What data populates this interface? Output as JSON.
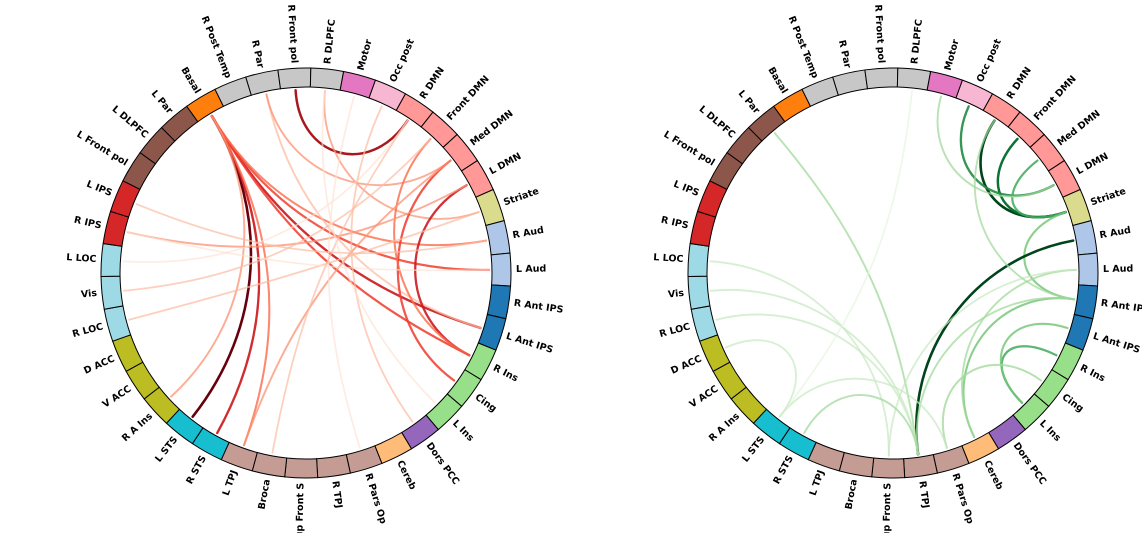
{
  "regions": [
    {
      "label": "R Par",
      "color": "#c7c7c7"
    },
    {
      "label": "R Front pol",
      "color": "#c7c7c7"
    },
    {
      "label": "R DLPFC",
      "color": "#c7c7c7"
    },
    {
      "label": "Motor",
      "color": "#e377c2"
    },
    {
      "label": "Occ post",
      "color": "#f7b6d2"
    },
    {
      "label": "R DMN",
      "color": "#ff9896"
    },
    {
      "label": "Front DMN",
      "color": "#ff9896"
    },
    {
      "label": "Med DMN",
      "color": "#ff9896"
    },
    {
      "label": "L DMN",
      "color": "#ff9896"
    },
    {
      "label": "Striate",
      "color": "#dbdb8d"
    },
    {
      "label": "R Aud",
      "color": "#aec7e8"
    },
    {
      "label": "L Aud",
      "color": "#aec7e8"
    },
    {
      "label": "R Ant IPS",
      "color": "#1f77b4"
    },
    {
      "label": "L Ant IPS",
      "color": "#1f77b4"
    },
    {
      "label": "R Ins",
      "color": "#98df8a"
    },
    {
      "label": "Cing",
      "color": "#98df8a"
    },
    {
      "label": "L Ins",
      "color": "#98df8a"
    },
    {
      "label": "Dors PCC",
      "color": "#9467bd"
    },
    {
      "label": "Cereb",
      "color": "#ffbb78"
    },
    {
      "label": "R Pars Op",
      "color": "#c49c94"
    },
    {
      "label": "R TPJ",
      "color": "#c49c94"
    },
    {
      "label": "Sup Front S",
      "color": "#c49c94"
    },
    {
      "label": "Broca",
      "color": "#c49c94"
    },
    {
      "label": "L TPJ",
      "color": "#c49c94"
    },
    {
      "label": "R STS",
      "color": "#17becf"
    },
    {
      "label": "L STS",
      "color": "#17becf"
    },
    {
      "label": "R A Ins",
      "color": "#bcbd22"
    },
    {
      "label": "V ACC",
      "color": "#bcbd22"
    },
    {
      "label": "D ACC",
      "color": "#bcbd22"
    },
    {
      "label": "R LOC",
      "color": "#9edae5"
    },
    {
      "label": "Vis",
      "color": "#9edae5"
    },
    {
      "label": "L LOC",
      "color": "#9edae5"
    },
    {
      "label": "R IPS",
      "color": "#d62728"
    },
    {
      "label": "L IPS",
      "color": "#d62728"
    },
    {
      "label": "L Front pol",
      "color": "#8c564b"
    },
    {
      "label": "L DLPFC",
      "color": "#8c564b"
    },
    {
      "label": "L Par",
      "color": "#8c564b"
    },
    {
      "label": "Basal",
      "color": "#ff7f0e"
    },
    {
      "label": "R Post Temp",
      "color": "#c7c7c7"
    }
  ],
  "diagrams": [
    {
      "name": "left",
      "edges": [
        {
          "from": 37,
          "to": 25,
          "color": "#67000d",
          "strength": 1.0
        },
        {
          "from": 37,
          "to": 24,
          "color": "#cb181d",
          "strength": 0.8
        },
        {
          "from": 37,
          "to": 13,
          "color": "#cb181d",
          "strength": 0.8
        },
        {
          "from": 37,
          "to": 14,
          "color": "#ef3b2c",
          "strength": 0.7
        },
        {
          "from": 37,
          "to": 11,
          "color": "#ef3b2c",
          "strength": 0.65
        },
        {
          "from": 37,
          "to": 10,
          "color": "#fb6a4a",
          "strength": 0.55
        },
        {
          "from": 37,
          "to": 23,
          "color": "#fb6a4a",
          "strength": 0.55
        },
        {
          "from": 37,
          "to": 26,
          "color": "#fc9272",
          "strength": 0.45
        },
        {
          "from": 1,
          "to": 5,
          "color": "#a50f15",
          "strength": 0.9
        },
        {
          "from": 0,
          "to": 13,
          "color": "#fcbba1",
          "strength": 0.4
        },
        {
          "from": 0,
          "to": 7,
          "color": "#fc9272",
          "strength": 0.45
        },
        {
          "from": 2,
          "to": 9,
          "color": "#fc9272",
          "strength": 0.4
        },
        {
          "from": 8,
          "to": 14,
          "color": "#cb181d",
          "strength": 0.75
        },
        {
          "from": 7,
          "to": 15,
          "color": "#ef3b2c",
          "strength": 0.7
        },
        {
          "from": 6,
          "to": 14,
          "color": "#fb6a4a",
          "strength": 0.55
        },
        {
          "from": 7,
          "to": 23,
          "color": "#fc9272",
          "strength": 0.45
        },
        {
          "from": 8,
          "to": 32,
          "color": "#fc9272",
          "strength": 0.45
        },
        {
          "from": 9,
          "to": 29,
          "color": "#fcbba1",
          "strength": 0.35
        },
        {
          "from": 6,
          "to": 30,
          "color": "#fcbba1",
          "strength": 0.3
        },
        {
          "from": 5,
          "to": 31,
          "color": "#fee0d2",
          "strength": 0.25
        },
        {
          "from": 33,
          "to": 10,
          "color": "#fcbba1",
          "strength": 0.3
        },
        {
          "from": 32,
          "to": 11,
          "color": "#fee0d2",
          "strength": 0.25
        },
        {
          "from": 4,
          "to": 17,
          "color": "#fcbba1",
          "strength": 0.35
        },
        {
          "from": 3,
          "to": 19,
          "color": "#fee0d2",
          "strength": 0.25
        },
        {
          "from": 5,
          "to": 22,
          "color": "#fcbba1",
          "strength": 0.3
        },
        {
          "from": 2,
          "to": 16,
          "color": "#fee0d2",
          "strength": 0.25
        }
      ]
    },
    {
      "name": "right",
      "edges": [
        {
          "from": 5,
          "to": 9,
          "color": "#00441b",
          "strength": 1.0
        },
        {
          "from": 6,
          "to": 9,
          "color": "#006d2c",
          "strength": 0.9
        },
        {
          "from": 4,
          "to": 8,
          "color": "#238b45",
          "strength": 0.8
        },
        {
          "from": 7,
          "to": 9,
          "color": "#41ab5d",
          "strength": 0.7
        },
        {
          "from": 9,
          "to": 12,
          "color": "#74c476",
          "strength": 0.6
        },
        {
          "from": 3,
          "to": 8,
          "color": "#a1d99b",
          "strength": 0.45
        },
        {
          "from": 10,
          "to": 20,
          "color": "#00441b",
          "strength": 1.0
        },
        {
          "from": 14,
          "to": 16,
          "color": "#41ab5d",
          "strength": 0.7
        },
        {
          "from": 13,
          "to": 16,
          "color": "#74c476",
          "strength": 0.6
        },
        {
          "from": 12,
          "to": 18,
          "color": "#74c476",
          "strength": 0.6
        },
        {
          "from": 15,
          "to": 19,
          "color": "#a1d99b",
          "strength": 0.5
        },
        {
          "from": 11,
          "to": 18,
          "color": "#a1d99b",
          "strength": 0.45
        },
        {
          "from": 20,
          "to": 36,
          "color": "#a1d99b",
          "strength": 0.45
        },
        {
          "from": 20,
          "to": 30,
          "color": "#c7e9c0",
          "strength": 0.4
        },
        {
          "from": 20,
          "to": 29,
          "color": "#c7e9c0",
          "strength": 0.4
        },
        {
          "from": 21,
          "to": 31,
          "color": "#c7e9c0",
          "strength": 0.35
        },
        {
          "from": 20,
          "to": 12,
          "color": "#a1d99b",
          "strength": 0.45
        },
        {
          "from": 21,
          "to": 11,
          "color": "#c7e9c0",
          "strength": 0.35
        },
        {
          "from": 20,
          "to": 24,
          "color": "#a1d99b",
          "strength": 0.45
        },
        {
          "from": 19,
          "to": 25,
          "color": "#c7e9c0",
          "strength": 0.35
        },
        {
          "from": 2,
          "to": 25,
          "color": "#e5f5e0",
          "strength": 0.3
        },
        {
          "from": 28,
          "to": 25,
          "color": "#c7e9c0",
          "strength": 0.35
        },
        {
          "from": 5,
          "to": 12,
          "color": "#a1d99b",
          "strength": 0.4
        }
      ]
    }
  ]
}
